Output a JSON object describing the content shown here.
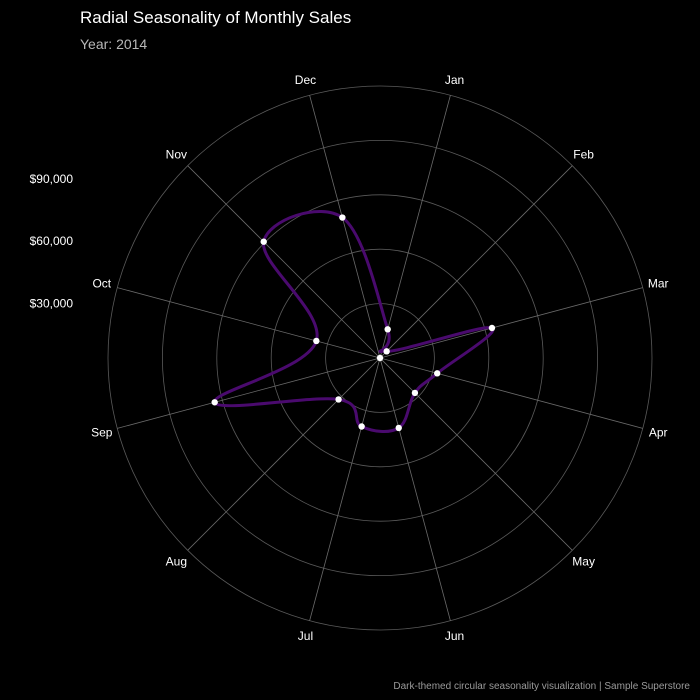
{
  "chart_data": {
    "type": "line",
    "coordinate_system": "polar",
    "title": "Radial Seasonality of Monthly Sales",
    "subtitle": "Year: 2014",
    "caption": "Dark-themed circular seasonality visualization | Sample Superstore",
    "categories": [
      "Jan",
      "Feb",
      "Mar",
      "Apr",
      "May",
      "Jun",
      "Jul",
      "Aug",
      "Sep",
      "Oct",
      "Nov",
      "Dec"
    ],
    "series": [
      {
        "values": [
          14200,
          4500,
          55400,
          28300,
          23600,
          34600,
          33900,
          28000,
          81800,
          31500,
          78600,
          69500
        ]
      }
    ],
    "radial_axis": {
      "range": [
        0,
        130000
      ],
      "tick_values": [
        30000,
        60000,
        90000
      ],
      "tick_labels": [
        "$30,000",
        "$60,000",
        "$90,000"
      ]
    },
    "colors": {
      "line": "#4a0a6e",
      "points": "#ffffff",
      "background": "#000000",
      "grid": "#5a5a5a"
    }
  }
}
